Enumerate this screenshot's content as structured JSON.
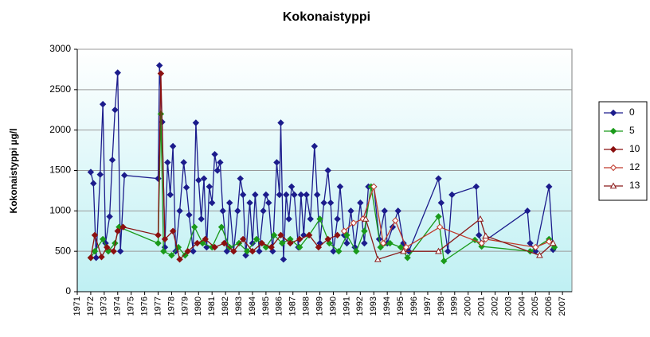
{
  "chart_data": {
    "type": "line",
    "title": "Kokonaistyppi",
    "y_label": "Kokonaistyppi µg/l",
    "xlim": [
      1971,
      2007.7
    ],
    "xticks": [
      1971,
      1972,
      1973,
      1974,
      1975,
      1976,
      1977,
      1978,
      1979,
      1980,
      1981,
      1982,
      1983,
      1984,
      1985,
      1986,
      1987,
      1988,
      1989,
      1990,
      1991,
      1992,
      1993,
      1994,
      1995,
      1996,
      1997,
      1998,
      1999,
      2000,
      2001,
      2002,
      2003,
      2004,
      2005,
      2006,
      2007
    ],
    "ylim": [
      0,
      3000
    ],
    "yticks": [
      0,
      500,
      1000,
      1500,
      2000,
      2500,
      3000
    ],
    "grid": true,
    "series": [
      {
        "name": "0",
        "color": "#1c1c8c",
        "marker": "diamond",
        "x": [
          1972.0,
          1972.2,
          1972.4,
          1972.7,
          1972.9,
          1973.1,
          1973.4,
          1973.6,
          1973.8,
          1974.0,
          1974.2,
          1974.5,
          1977.0,
          1977.1,
          1977.3,
          1977.5,
          1977.7,
          1977.9,
          1978.1,
          1978.3,
          1978.6,
          1978.9,
          1979.1,
          1979.3,
          1979.6,
          1979.8,
          1980.0,
          1980.2,
          1980.4,
          1980.6,
          1980.8,
          1981.0,
          1981.2,
          1981.4,
          1981.6,
          1981.8,
          1982.1,
          1982.3,
          1982.6,
          1982.9,
          1983.1,
          1983.3,
          1983.5,
          1983.8,
          1984.0,
          1984.2,
          1984.5,
          1984.8,
          1985.0,
          1985.2,
          1985.5,
          1985.8,
          1986.0,
          1986.1,
          1986.3,
          1986.5,
          1986.7,
          1986.9,
          1987.1,
          1987.4,
          1987.6,
          1987.8,
          1988.0,
          1988.3,
          1988.6,
          1988.8,
          1989.0,
          1989.3,
          1989.6,
          1989.8,
          1990.0,
          1990.3,
          1990.5,
          1990.8,
          1991.0,
          1991.3,
          1991.6,
          1992.0,
          1992.3,
          1992.6,
          1993.0,
          1993.4,
          1993.8,
          1994.0,
          1994.4,
          1994.8,
          1995.2,
          1995.6,
          1997.8,
          1998.0,
          1998.5,
          1998.8,
          2000.6,
          2000.8,
          2001.0,
          2004.4,
          2004.6,
          2005.0,
          2006.0,
          2006.3
        ],
        "values": [
          1480,
          1340,
          420,
          1450,
          2320,
          600,
          930,
          1630,
          2250,
          2710,
          500,
          1440,
          1400,
          2800,
          2100,
          550,
          1600,
          1200,
          1800,
          500,
          1000,
          1600,
          1290,
          950,
          500,
          2090,
          1380,
          900,
          1400,
          550,
          1300,
          1100,
          1700,
          1500,
          1600,
          1000,
          500,
          1100,
          500,
          1000,
          1400,
          1200,
          450,
          1100,
          600,
          1200,
          500,
          1000,
          1200,
          1100,
          500,
          1600,
          1200,
          2090,
          400,
          1200,
          900,
          1300,
          1200,
          550,
          1200,
          700,
          1200,
          900,
          1800,
          1200,
          600,
          1100,
          1500,
          1100,
          500,
          900,
          1300,
          700,
          600,
          1000,
          550,
          1100,
          600,
          1300,
          1300,
          650,
          1000,
          600,
          800,
          1000,
          600,
          500,
          1400,
          1100,
          500,
          1200,
          1300,
          700,
          600,
          1000,
          600,
          500,
          1300,
          520
        ]
      },
      {
        "name": "5",
        "color": "#1a9a1a",
        "marker": "diamond",
        "x": [
          1972.0,
          1972.3,
          1972.9,
          1973.3,
          1973.8,
          1974.1,
          1977.0,
          1977.2,
          1977.4,
          1978.0,
          1978.5,
          1979.0,
          1979.7,
          1980.3,
          1981.0,
          1981.7,
          1982.3,
          1983.0,
          1983.6,
          1984.3,
          1985.0,
          1985.6,
          1986.2,
          1986.8,
          1987.5,
          1988.2,
          1989.0,
          1989.7,
          1990.4,
          1991.0,
          1991.7,
          1992.3,
          1992.8,
          1993.5,
          1994.2,
          1995.0,
          1995.5,
          1997.8,
          1998.2,
          2000.5,
          2001.0,
          2004.6,
          2006.0,
          2006.4
        ],
        "values": [
          420,
          500,
          650,
          500,
          600,
          800,
          600,
          2200,
          500,
          450,
          550,
          450,
          800,
          600,
          550,
          800,
          550,
          600,
          500,
          650,
          550,
          700,
          600,
          650,
          550,
          700,
          900,
          600,
          500,
          700,
          500,
          750,
          1300,
          550,
          600,
          550,
          420,
          930,
          380,
          640,
          560,
          500,
          650,
          550
        ]
      },
      {
        "name": "10",
        "color": "#8b1010",
        "marker": "diamond",
        "x": [
          1972.0,
          1972.3,
          1972.8,
          1973.2,
          1973.7,
          1974.0,
          1974.4,
          1977.0,
          1977.2,
          1977.5,
          1978.1,
          1978.6,
          1979.2,
          1979.9,
          1980.5,
          1981.2,
          1981.9,
          1982.6,
          1983.3,
          1984.0,
          1984.7,
          1985.4,
          1986.1,
          1986.8,
          1987.5,
          1988.2,
          1988.9,
          1989.6,
          1990.3
        ],
        "values": [
          420,
          700,
          430,
          550,
          500,
          750,
          800,
          700,
          2700,
          650,
          750,
          400,
          500,
          600,
          650,
          550,
          600,
          500,
          650,
          500,
          600,
          550,
          700,
          600,
          650,
          700,
          550,
          650,
          700
        ]
      },
      {
        "name": "12",
        "color": "#c0392b",
        "marker": "diamond-open",
        "x": [
          1990.8,
          1991.5,
          1992.2,
          1993.0,
          1993.7,
          1994.6,
          1995.4,
          1997.9,
          2001.0,
          2001.3,
          2005.0,
          2006.0
        ],
        "values": [
          750,
          850,
          900,
          1300,
          600,
          880,
          550,
          800,
          600,
          650,
          550,
          620
        ]
      },
      {
        "name": "13",
        "color": "#8b1a1a",
        "marker": "triangle-open",
        "x": [
          1992.4,
          1993.3,
          1995.2,
          1997.8,
          2000.9,
          2001.3,
          2005.3,
          2006.3
        ],
        "values": [
          900,
          400,
          500,
          500,
          900,
          690,
          450,
          600
        ]
      }
    ]
  }
}
